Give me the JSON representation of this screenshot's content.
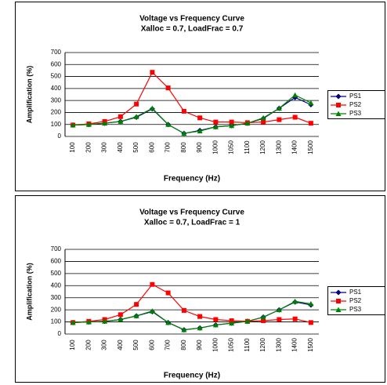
{
  "chart_data": [
    {
      "type": "line",
      "title": "Voltage vs Frequency Curve",
      "subtitle": "Xalloc = 0.7, LoadFrac = 0.7",
      "x_label": "Frequency (Hz)",
      "y_label": "Amplification (%)",
      "categories": [
        "100",
        "200",
        "300",
        "400",
        "500",
        "600",
        "700",
        "800",
        "900",
        "1000",
        "1050",
        "1100",
        "1200",
        "1300",
        "1400",
        "1500"
      ],
      "ylim": [
        0,
        700
      ],
      "yticks": [
        0,
        100,
        200,
        300,
        400,
        500,
        600,
        700
      ],
      "grid": true,
      "legend": "right",
      "series": [
        {
          "name": "PS1",
          "color": "#000080",
          "marker": "diamond",
          "values": [
            95,
            100,
            110,
            125,
            160,
            230,
            100,
            25,
            50,
            80,
            90,
            110,
            150,
            235,
            325,
            265
          ]
        },
        {
          "name": "PS2",
          "color": "#ff0000",
          "marker": "square",
          "values": [
            95,
            105,
            125,
            165,
            270,
            535,
            405,
            210,
            155,
            120,
            120,
            115,
            120,
            140,
            160,
            110
          ]
        },
        {
          "name": "PS3",
          "color": "#008000",
          "marker": "triangle",
          "values": [
            95,
            100,
            110,
            125,
            165,
            235,
            100,
            25,
            45,
            80,
            90,
            110,
            155,
            235,
            345,
            280
          ]
        }
      ]
    },
    {
      "type": "line",
      "title": "Voltage vs Frequency Curve",
      "subtitle": "Xalloc = 0.7, LoadFrac = 1",
      "x_label": "Frequency (Hz)",
      "y_label": "Amplification (%)",
      "categories": [
        "100",
        "200",
        "300",
        "400",
        "500",
        "600",
        "700",
        "800",
        "900",
        "1000",
        "1050",
        "1100",
        "1200",
        "1300",
        "1400",
        "1500"
      ],
      "ylim": [
        0,
        700
      ],
      "yticks": [
        0,
        100,
        200,
        300,
        400,
        500,
        600,
        700
      ],
      "grid": true,
      "legend": "right",
      "series": [
        {
          "name": "PS1",
          "color": "#000080",
          "marker": "diamond",
          "values": [
            95,
            100,
            105,
            120,
            150,
            185,
            95,
            35,
            50,
            75,
            90,
            105,
            140,
            200,
            265,
            240
          ]
        },
        {
          "name": "PS2",
          "color": "#ff0000",
          "marker": "square",
          "values": [
            95,
            105,
            120,
            160,
            245,
            410,
            340,
            195,
            145,
            120,
            110,
            105,
            110,
            120,
            125,
            95
          ]
        },
        {
          "name": "PS3",
          "color": "#008000",
          "marker": "triangle",
          "values": [
            95,
            100,
            105,
            120,
            150,
            190,
            95,
            35,
            50,
            75,
            90,
            105,
            140,
            200,
            270,
            250
          ]
        }
      ]
    }
  ]
}
